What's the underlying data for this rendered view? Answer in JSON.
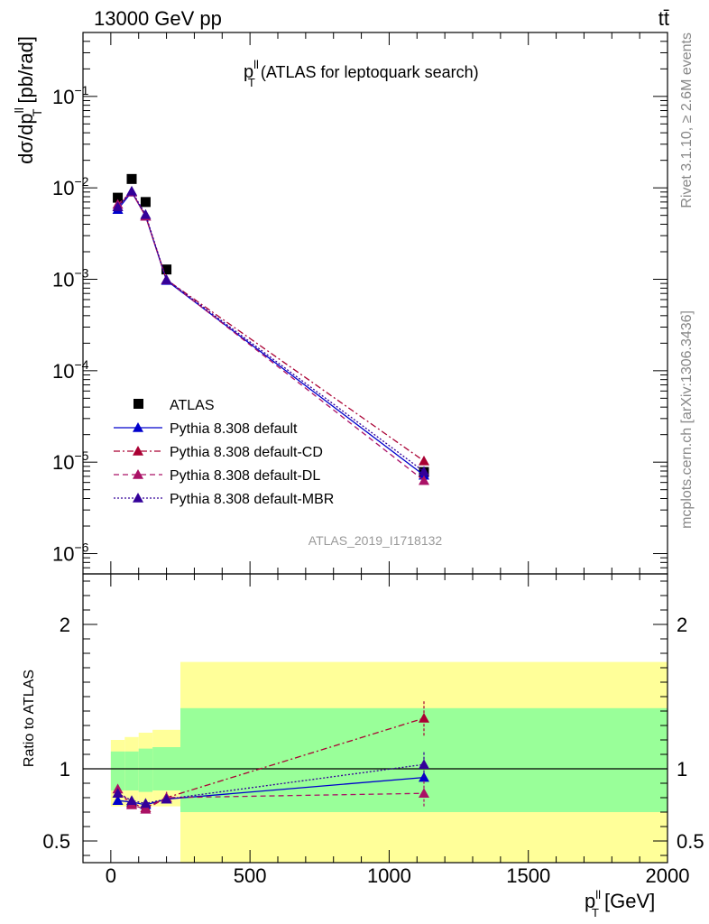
{
  "header": {
    "left": "13000 GeV pp",
    "right": "tt̄"
  },
  "side": {
    "top": "Rivet 3.1.10, ≥ 2.6M events",
    "bottom": "mcplots.cern.ch [arXiv:1306.3436]"
  },
  "chart_data": [
    {
      "type": "line",
      "panel": "main",
      "title_main": "p",
      "title_sup": "ll",
      "title_sub": "T",
      "title_rest": "(ATLAS for leptoquark search)",
      "ylabel": "dσ/dp",
      "ylabel_sup": "ll",
      "ylabel_sub": "T",
      "ylabel_rest": "[pb/rad]",
      "yscale": "log",
      "ylim": [
        6e-07,
        0.5
      ],
      "xlim": [
        -100,
        2000
      ],
      "ytick_labels": [
        {
          "base": "10",
          "exp": "−1",
          "v": 0.1
        },
        {
          "base": "10",
          "exp": "−2",
          "v": 0.01
        },
        {
          "base": "10",
          "exp": "−3",
          "v": 0.001
        },
        {
          "base": "10",
          "exp": "−4",
          "v": 0.0001
        },
        {
          "base": "10",
          "exp": "−5",
          "v": 1e-05
        },
        {
          "base": "10",
          "exp": "−6",
          "v": 1e-06
        }
      ],
      "watermark": "ATLAS_2019_I1718132",
      "legend_position": "bottom-left",
      "series": [
        {
          "name": "ATLAS",
          "style": "data",
          "color": "#000000",
          "x": [
            25,
            75,
            125,
            200,
            1125
          ],
          "y": [
            0.0078,
            0.0125,
            0.007,
            0.00128,
            7.8e-06
          ]
        },
        {
          "name": "Pythia 8.308 default",
          "style": "solid",
          "color": "#0000cc",
          "x": [
            25,
            75,
            125,
            200,
            1125
          ],
          "y": [
            0.0058,
            0.009,
            0.0049,
            0.00097,
            7.2e-06
          ]
        },
        {
          "name": "Pythia 8.308 default-CD",
          "style": "dashdot",
          "color": "#aa0033",
          "x": [
            25,
            75,
            125,
            200,
            1125
          ],
          "y": [
            0.0062,
            0.0091,
            0.0049,
            0.00099,
            1.03e-05
          ]
        },
        {
          "name": "Pythia 8.308 default-DL",
          "style": "dashed",
          "color": "#aa1166",
          "x": [
            25,
            75,
            125,
            200,
            1125
          ],
          "y": [
            0.0066,
            0.009,
            0.0049,
            0.00099,
            6.3e-06
          ]
        },
        {
          "name": "Pythia 8.308 default-MBR",
          "style": "dotted",
          "color": "#330099",
          "x": [
            25,
            75,
            125,
            200,
            1125
          ],
          "y": [
            0.0062,
            0.0092,
            0.0051,
            0.00099,
            7.9e-06
          ]
        }
      ]
    },
    {
      "type": "line",
      "panel": "ratio",
      "ylabel": "Ratio to ATLAS",
      "xlabel": "p",
      "xlabel_sup": "ll",
      "xlabel_sub": "T",
      "xlabel_rest": "[GeV]",
      "ylim": [
        0.35,
        2.35
      ],
      "xlim": [
        -100,
        2000
      ],
      "xtick_labels": [
        {
          "label": "0",
          "v": 0
        },
        {
          "label": "500",
          "v": 500
        },
        {
          "label": "1000",
          "v": 1000
        },
        {
          "label": "1500",
          "v": 1500
        },
        {
          "label": "2000",
          "v": 2000
        }
      ],
      "ytick_labels": [
        {
          "label": "2",
          "v": 2
        },
        {
          "label": "1",
          "v": 1
        },
        {
          "label": "0.5",
          "v": 0.5
        }
      ],
      "bands": [
        {
          "x0": 0,
          "x1": 50,
          "green": [
            0.85,
            1.12
          ],
          "yellow": [
            0.74,
            1.2
          ]
        },
        {
          "x0": 50,
          "x1": 100,
          "green": [
            0.85,
            1.12
          ],
          "yellow": [
            0.74,
            1.22
          ]
        },
        {
          "x0": 100,
          "x1": 150,
          "green": [
            0.84,
            1.14
          ],
          "yellow": [
            0.74,
            1.25
          ]
        },
        {
          "x0": 150,
          "x1": 250,
          "green": [
            0.85,
            1.15
          ],
          "yellow": [
            0.74,
            1.27
          ]
        },
        {
          "x0": 250,
          "x1": 2000,
          "green": [
            0.7,
            1.42
          ],
          "yellow": [
            0.35,
            1.74
          ]
        }
      ],
      "series": [
        {
          "name": "Pythia 8.308 default",
          "style": "solid",
          "color": "#0000cc",
          "x": [
            25,
            75,
            125,
            200,
            1125
          ],
          "y": [
            0.78,
            0.77,
            0.75,
            0.79,
            0.94
          ]
        },
        {
          "name": "Pythia 8.308 default-CD",
          "style": "dashdot",
          "color": "#aa0033",
          "x": [
            25,
            75,
            125,
            200,
            1125
          ],
          "y": [
            0.83,
            0.76,
            0.73,
            0.8,
            1.35
          ],
          "err": [
            0,
            0,
            0,
            0.04,
            0.12
          ]
        },
        {
          "name": "Pythia 8.308 default-DL",
          "style": "dashed",
          "color": "#aa1166",
          "x": [
            25,
            75,
            125,
            200,
            1125
          ],
          "y": [
            0.86,
            0.75,
            0.72,
            0.8,
            0.83
          ],
          "err": [
            0,
            0,
            0,
            0.04,
            0.09
          ]
        },
        {
          "name": "Pythia 8.308 default-MBR",
          "style": "dotted",
          "color": "#330099",
          "x": [
            25,
            75,
            125,
            200,
            1125
          ],
          "y": [
            0.83,
            0.78,
            0.76,
            0.79,
            1.03
          ],
          "err": [
            0,
            0,
            0,
            0,
            0.09
          ]
        }
      ]
    }
  ]
}
